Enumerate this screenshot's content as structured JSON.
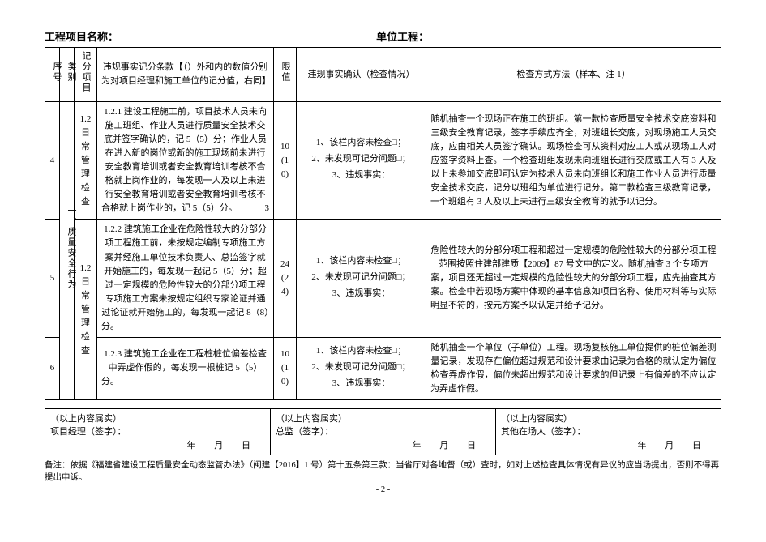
{
  "header": {
    "project_label": "工程项目名称：",
    "unit_label": "单位工程："
  },
  "columns": {
    "seq": "序号",
    "cat": "类别",
    "item": "记分项目",
    "rule": "违规事实记分条款【（）外和内的数值分别为对项目经理和施工单位的记分值，右同】",
    "limit": "限值",
    "check": "违规事实确认（检查情况）",
    "method": "检查方式方法（样本、注 1）"
  },
  "cat_label": "一、质量安全行为",
  "item_labels": {
    "a": "1.2\n日常管理检查",
    "b": "1.2\n日常管理检查"
  },
  "rows": [
    {
      "seq": "4",
      "rule_text": "1.2.1  建设工程施工前，项目技术人员未向施工班组、作业人员进行质量安全技术交底并签字确认的，记 5（5）分；作业人员在进入新的岗位或新的施工现场前未进行安全教育培训或者安全教育培训考核不合格就上岗作业的，每发现一人及以上未进行安全教育培训或者安全教育培训考核不合格就上岗作业的，记   5（5）分。",
      "rule_side": "3",
      "limit": "10\n(10)",
      "checks": [
        "1、该栏内容未检查□；",
        "2、未发现可记分问题□；",
        "3、违规事实："
      ],
      "method": "随机抽查一个现场正在施工的班组。第一款检查质量安全技术交底资料和三级安全教育记录，签字手续应齐全，对班组长交底，对现场施工人员交底，应由相关人员签字确认。现场检查可从资料对应工人或从现场工人对应签字资料上查。一个检查班组发现未向班组长进行交底或工人有 3 人及以上未参加交底即可认定为技术人员未向班组长和施工作业人员进行质量安全技术交底，记分以班组为单位进行记分。第二款检查三级教育记录，一个班组有 3 人及以上未进行三级安全教育的就予以记分。"
    },
    {
      "seq": "5",
      "rule_text": "1.2.2  建筑施工企业在危险性较大的分部分项工程施工前，未按规定编制专项施工方案并经施工单位技术负责人、总监签字就开始施工的，每发现一起记 5（5）分；超过一定规模的危险性较大的分部分项工程专项施工方案未按规定组织专家论证并通过论证就开始施工的，每发现一起记 8（8）分。",
      "rule_side": "",
      "limit": "24\n(24)",
      "checks": [
        "1、该栏内容未检查□；",
        "2、未发现可记分问题□；",
        "3、违规事实："
      ],
      "method": "危险性较大的分部分项工程和超过一定规模的危险性较大的分部分项工程范围按照住建部建质【2009】87 号文中的定义。随机抽查 3 个专项方案，项目还无超过一定规模的危险性较大的分部分项工程，应先抽查其方案。检查中若现场方案中体现的基本信息如项目名称、使用材料等与实际明显不符的，按元方案予以认定并给予记分。"
    },
    {
      "seq": "6",
      "rule_text": "1.2.3  建筑施工企业在工程桩桩位偏差检查中弄虚作假的，每发现一根桩记 5（5）分。",
      "rule_side": "",
      "limit": "10\n(10)",
      "checks": [
        "1、该栏内容未检查□；",
        "2、未发现可记分问题□；",
        "3、违规事实："
      ],
      "method": "随机抽查一个单位（子单位）工程。现场复核施工单位提供的桩位偏差测量记录，发现存在偏位超过规范和设计要求由记录为合格的就认定为偏位检查弄虚作假，偏位未超出规范和设计要求的但记录上有偏差的不应认定为弄虚作假。"
    }
  ],
  "sign": {
    "truth": "（以上内容属实）",
    "pm": "项目经理（签字）：",
    "sup": "总监（签字）：",
    "other": "其他在场人（签字）：",
    "date": "年 月 日"
  },
  "footer": "备注：依据《福建省建设工程质量安全动态监管办法》（闽建【2016】1 号）第十五条第三款：当省厅对各地督（或）查时，如对上述检查具体情况有异议的应当场提出，否则不得再提出申诉。",
  "page": "- 2 -"
}
